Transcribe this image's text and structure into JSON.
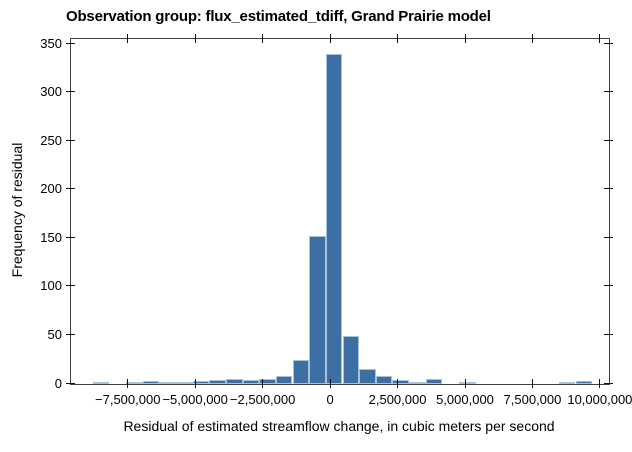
{
  "title": "Observation group: flux_estimated_tdiff, Grand Prairie model",
  "chart_data": {
    "type": "bar",
    "subtype": "histogram",
    "title": "Observation group: flux_estimated_tdiff, Grand Prairie model",
    "xlabel": "Residual of estimated streamflow change, in cubic meters per second",
    "ylabel": "Frequency of residual",
    "xlim": [
      -9640000,
      10300000
    ],
    "ylim": [
      0,
      356
    ],
    "grid": false,
    "legend": null,
    "x_ticks": [
      -7500000,
      -5000000,
      -2500000,
      0,
      2500000,
      5000000,
      7500000,
      10000000
    ],
    "x_tick_labels": [
      "−7,500,000",
      "−5,000,000",
      "−2,500,000",
      "0",
      "2,500,000",
      "5,000,000",
      "7,500,000",
      "10,000,000"
    ],
    "y_ticks": [
      0,
      50,
      100,
      150,
      200,
      250,
      300,
      350
    ],
    "y_tick_labels": [
      "0",
      "50",
      "100",
      "150",
      "200",
      "250",
      "300",
      "350"
    ],
    "bin_start": -8833000,
    "bin_width": 617000,
    "counts": [
      2,
      0,
      1,
      3,
      2,
      1,
      3,
      4,
      5,
      4,
      5,
      8,
      25,
      153,
      340,
      50,
      15,
      8,
      4,
      2,
      5,
      0,
      2,
      0,
      0,
      0,
      0,
      0,
      2,
      3,
      0
    ],
    "bar_color": "#3d6fa4",
    "bar_edge_color": "#a6c3da",
    "spine_color": "#3f3f3f",
    "tick_color": "#111111"
  }
}
